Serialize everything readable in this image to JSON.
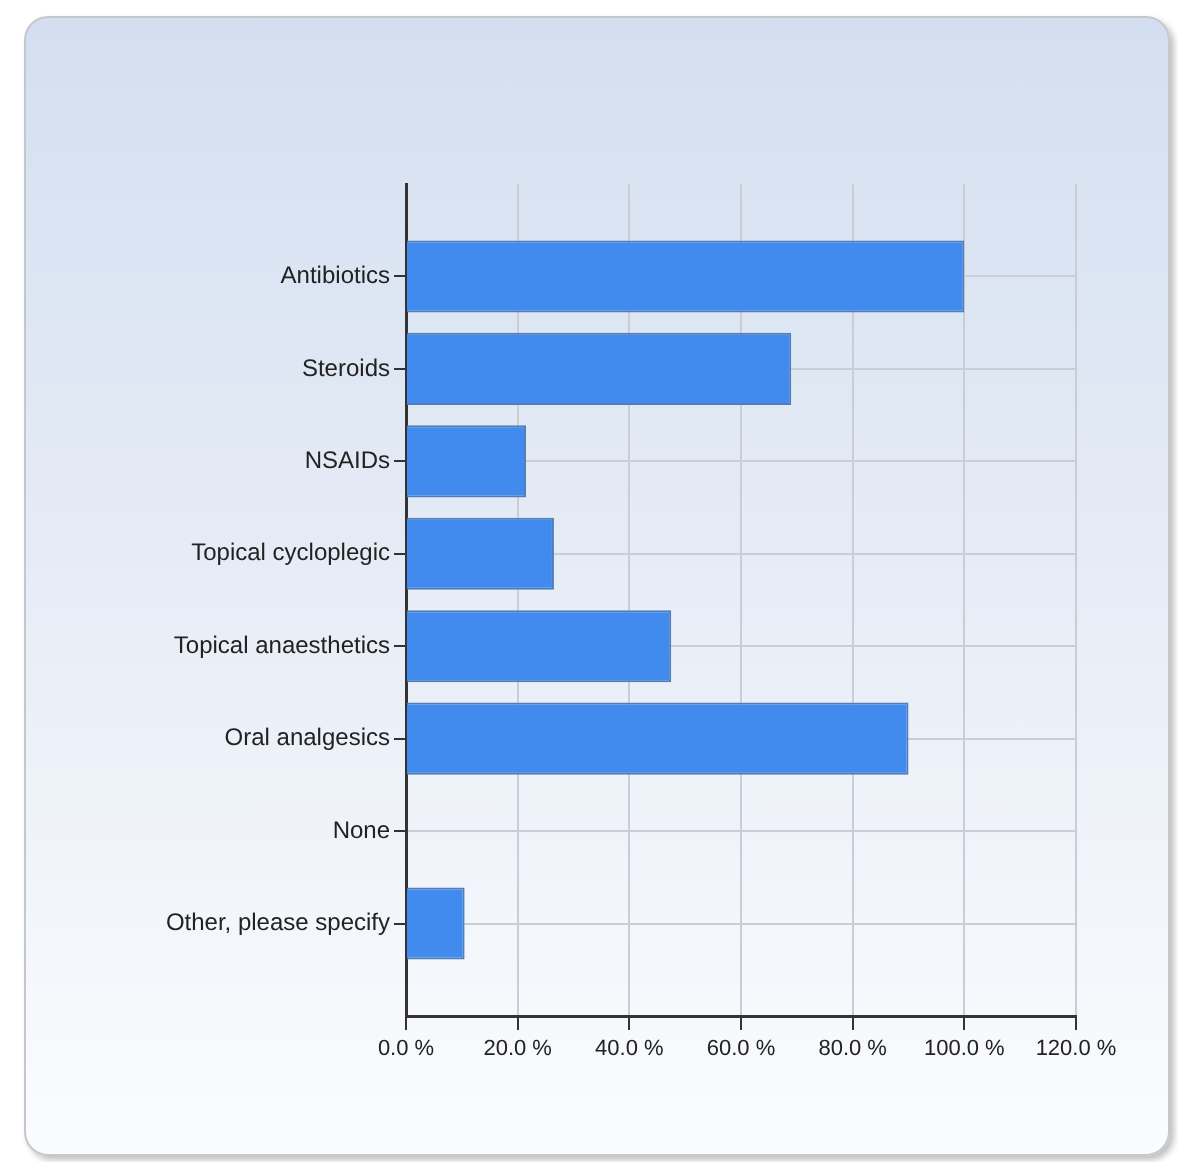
{
  "chart_data": {
    "type": "bar",
    "orientation": "horizontal",
    "categories": [
      "Antibiotics",
      "Steroids",
      "NSAIDs",
      "Topical cycloplegic",
      "Topical anaesthetics",
      "Oral analgesics",
      "None",
      "Other, please specify"
    ],
    "values": [
      100,
      69,
      21.5,
      26.5,
      47.5,
      90,
      0,
      10.5
    ],
    "color": "#418bef",
    "xlim": [
      0,
      120
    ],
    "xticks": [
      {
        "value": 0,
        "label": "0.0 %"
      },
      {
        "value": 20,
        "label": "20.0 %"
      },
      {
        "value": 40,
        "label": "40.0 %"
      },
      {
        "value": 60,
        "label": "60.0 %"
      },
      {
        "value": 80,
        "label": "80.0 %"
      },
      {
        "value": 100,
        "label": "100.0 %"
      },
      {
        "value": 120,
        "label": "120.0 %"
      }
    ],
    "grid": true
  }
}
